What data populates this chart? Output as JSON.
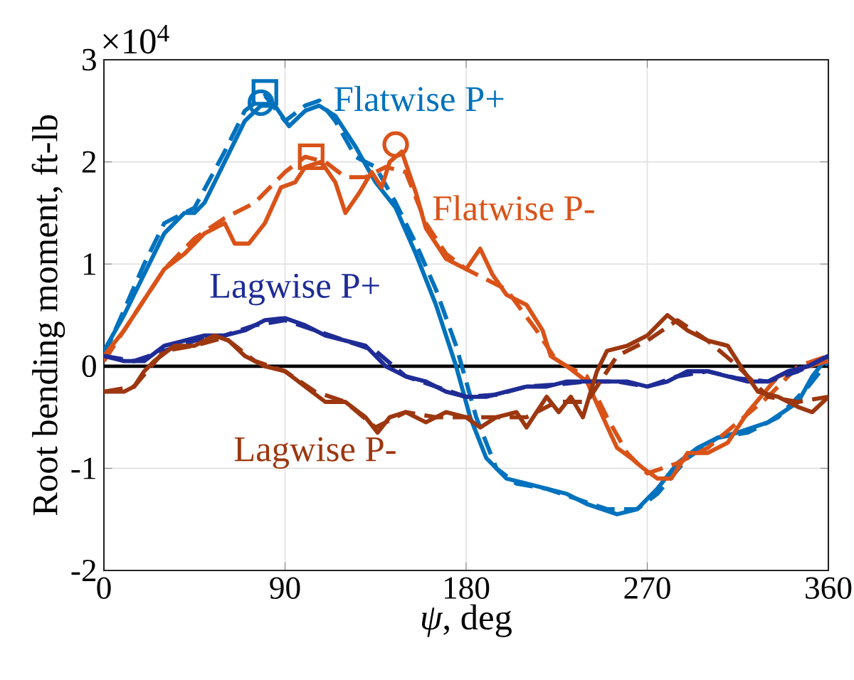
{
  "chart_data": {
    "type": "line",
    "xlabel": "*ψ*, deg",
    "ylabel": "Root bending moment, ft-lb",
    "annotations": [
      "×10$^{4}$"
    ],
    "xlim": [
      0,
      360
    ],
    "xticks": [
      0,
      90,
      180,
      270,
      360
    ],
    "ylim": [
      -2,
      3
    ],
    "yticks": [
      -2,
      -1,
      0,
      1,
      2,
      3
    ],
    "grid": true,
    "ref_lines": [
      {
        "axis": "y",
        "value": 0,
        "color": "#000000"
      }
    ],
    "series": [
      {
        "name": "Flatwise P+",
        "color": "#0072bd",
        "line_style": "solid",
        "x": [
          0,
          10,
          20,
          30,
          40,
          45,
          50,
          60,
          70,
          78,
          85,
          92,
          100,
          107,
          115,
          125,
          135,
          145,
          155,
          165,
          175,
          182,
          190,
          200,
          210,
          220,
          230,
          240,
          255,
          265,
          275,
          285,
          295,
          305,
          315,
          330,
          345,
          352,
          360
        ],
        "values": [
          0.15,
          0.5,
          0.9,
          1.3,
          1.5,
          1.5,
          1.6,
          2.0,
          2.4,
          2.55,
          2.55,
          2.35,
          2.5,
          2.55,
          2.45,
          2.15,
          1.8,
          1.55,
          1.1,
          0.6,
          0.0,
          -0.5,
          -0.9,
          -1.1,
          -1.15,
          -1.2,
          -1.25,
          -1.35,
          -1.45,
          -1.4,
          -1.2,
          -0.95,
          -0.8,
          -0.7,
          -0.65,
          -0.55,
          -0.35,
          -0.1,
          0.1
        ]
      },
      {
        "color": "#0072bd",
        "line_style": "dashed",
        "x": [
          0,
          10,
          20,
          30,
          45,
          60,
          70,
          80,
          90,
          100,
          107,
          115,
          125,
          135,
          145,
          155,
          165,
          175,
          185,
          195,
          205,
          220,
          235,
          250,
          265,
          275,
          290,
          305,
          320,
          335,
          350,
          360
        ],
        "values": [
          0.1,
          0.55,
          1.0,
          1.4,
          1.55,
          2.1,
          2.5,
          2.65,
          2.4,
          2.55,
          2.6,
          2.4,
          2.05,
          1.95,
          1.6,
          1.2,
          0.75,
          0.2,
          -0.5,
          -1.0,
          -1.15,
          -1.2,
          -1.3,
          -1.4,
          -1.4,
          -1.25,
          -0.9,
          -0.7,
          -0.65,
          -0.5,
          -0.2,
          0.05
        ]
      },
      {
        "name": "Flatwise P-",
        "color": "#d95319",
        "line_style": "solid",
        "x": [
          0,
          10,
          20,
          30,
          40,
          50,
          60,
          65,
          72,
          80,
          88,
          95,
          100,
          108,
          115,
          120,
          127,
          133,
          138,
          142,
          148,
          155,
          160,
          165,
          170,
          175,
          180,
          187,
          193,
          200,
          210,
          218,
          222,
          230,
          240,
          248,
          255,
          262,
          268,
          275,
          282,
          290,
          300,
          310,
          320,
          335,
          350,
          360
        ],
        "values": [
          0.1,
          0.35,
          0.65,
          0.95,
          1.1,
          1.3,
          1.4,
          1.2,
          1.2,
          1.4,
          1.75,
          1.8,
          1.95,
          2.0,
          1.8,
          1.5,
          1.7,
          1.9,
          1.75,
          2.0,
          2.1,
          1.7,
          1.35,
          1.2,
          1.05,
          1.0,
          0.95,
          1.15,
          0.9,
          0.7,
          0.6,
          0.35,
          0.1,
          0.0,
          -0.15,
          -0.5,
          -0.8,
          -0.9,
          -1.0,
          -1.1,
          -1.1,
          -0.85,
          -0.85,
          -0.75,
          -0.45,
          -0.1,
          0.0,
          0.05
        ]
      },
      {
        "color": "#d95319",
        "line_style": "dashed",
        "x": [
          0,
          15,
          30,
          45,
          60,
          75,
          90,
          100,
          110,
          120,
          130,
          140,
          150,
          160,
          170,
          180,
          190,
          200,
          215,
          225,
          240,
          250,
          260,
          270,
          285,
          300,
          315,
          330,
          345,
          360
        ],
        "values": [
          0.05,
          0.5,
          0.95,
          1.25,
          1.45,
          1.6,
          1.9,
          2.05,
          2.0,
          1.85,
          1.85,
          1.95,
          1.9,
          1.4,
          1.1,
          0.95,
          0.85,
          0.75,
          0.35,
          0.05,
          -0.1,
          -0.5,
          -0.85,
          -1.05,
          -0.95,
          -0.8,
          -0.55,
          -0.3,
          0.0,
          0.1
        ]
      },
      {
        "name": "Lagwise P+",
        "color": "#1f2c96",
        "line_style": "solid",
        "x": [
          0,
          10,
          20,
          30,
          40,
          50,
          60,
          70,
          80,
          90,
          100,
          110,
          120,
          130,
          140,
          150,
          160,
          170,
          180,
          190,
          200,
          210,
          220,
          230,
          240,
          250,
          260,
          270,
          280,
          290,
          300,
          310,
          320,
          330,
          340,
          350,
          360
        ],
        "values": [
          0.1,
          0.05,
          0.05,
          0.2,
          0.25,
          0.3,
          0.3,
          0.35,
          0.45,
          0.47,
          0.4,
          0.3,
          0.25,
          0.2,
          0.0,
          -0.1,
          -0.15,
          -0.25,
          -0.3,
          -0.3,
          -0.25,
          -0.2,
          -0.2,
          -0.15,
          -0.15,
          -0.15,
          -0.15,
          -0.2,
          -0.15,
          -0.05,
          -0.05,
          -0.1,
          -0.15,
          -0.15,
          -0.05,
          0.0,
          0.1
        ]
      },
      {
        "color": "#1f2c96",
        "line_style": "dashed",
        "x": [
          0,
          15,
          30,
          45,
          60,
          75,
          90,
          105,
          120,
          135,
          150,
          165,
          180,
          195,
          210,
          225,
          240,
          255,
          270,
          285,
          300,
          315,
          330,
          345,
          360
        ],
        "values": [
          0.1,
          0.05,
          0.15,
          0.25,
          0.3,
          0.4,
          0.45,
          0.35,
          0.25,
          0.15,
          -0.1,
          -0.2,
          -0.3,
          -0.28,
          -0.2,
          -0.18,
          -0.15,
          -0.15,
          -0.2,
          -0.1,
          -0.05,
          -0.12,
          -0.15,
          -0.05,
          0.1
        ]
      },
      {
        "name": "Lagwise P-",
        "color": "#9c3710",
        "line_style": "solid",
        "x": [
          0,
          10,
          15,
          20,
          25,
          35,
          45,
          55,
          62,
          70,
          80,
          90,
          100,
          110,
          120,
          130,
          136,
          142,
          150,
          160,
          170,
          180,
          187,
          195,
          205,
          210,
          220,
          226,
          232,
          238,
          245,
          250,
          260,
          270,
          280,
          290,
          300,
          310,
          318,
          325,
          335,
          345,
          352,
          360
        ],
        "values": [
          -0.25,
          -0.25,
          -0.2,
          -0.05,
          0.05,
          0.2,
          0.2,
          0.3,
          0.25,
          0.1,
          0.0,
          -0.05,
          -0.2,
          -0.35,
          -0.35,
          -0.5,
          -0.65,
          -0.5,
          -0.45,
          -0.55,
          -0.45,
          -0.5,
          -0.6,
          -0.5,
          -0.45,
          -0.6,
          -0.3,
          -0.45,
          -0.3,
          -0.5,
          -0.05,
          0.15,
          0.2,
          0.3,
          0.5,
          0.35,
          0.25,
          0.2,
          -0.05,
          -0.25,
          -0.3,
          -0.4,
          -0.45,
          -0.3
        ]
      },
      {
        "color": "#9c3710",
        "line_style": "dashed",
        "x": [
          0,
          15,
          30,
          45,
          60,
          75,
          90,
          105,
          120,
          135,
          150,
          165,
          180,
          195,
          210,
          225,
          240,
          255,
          270,
          285,
          300,
          315,
          330,
          345,
          360
        ],
        "values": [
          -0.25,
          -0.2,
          0.15,
          0.2,
          0.28,
          0.05,
          -0.05,
          -0.25,
          -0.35,
          -0.6,
          -0.45,
          -0.5,
          -0.5,
          -0.5,
          -0.5,
          -0.35,
          -0.35,
          0.1,
          0.25,
          0.45,
          0.25,
          0.0,
          -0.3,
          -0.35,
          -0.3
        ]
      },
      {
        "type": "scatter",
        "marker": "circle",
        "color": "#0072bd",
        "x": [
          78
        ],
        "values": [
          2.58
        ]
      },
      {
        "type": "scatter",
        "marker": "square",
        "color": "#0072bd",
        "x": [
          80
        ],
        "values": [
          2.68
        ]
      },
      {
        "type": "scatter",
        "marker": "square",
        "color": "#d95319",
        "x": [
          103
        ],
        "values": [
          2.05
        ]
      },
      {
        "type": "scatter",
        "marker": "circle",
        "color": "#d95319",
        "x": [
          145
        ],
        "values": [
          2.17
        ]
      }
    ]
  }
}
